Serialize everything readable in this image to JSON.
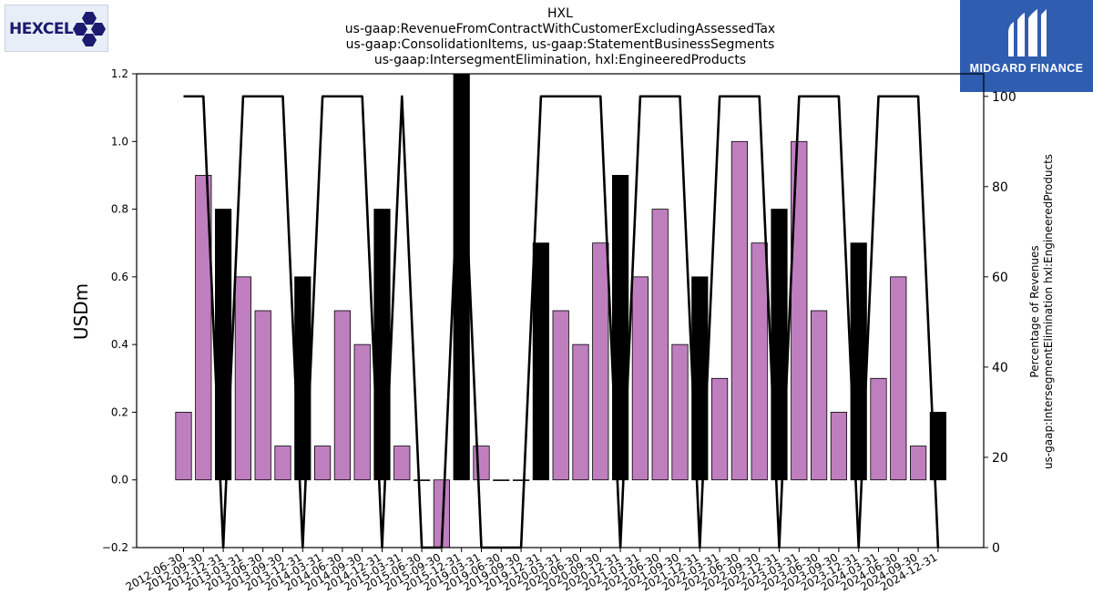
{
  "header": {
    "title_lines": [
      "HXL",
      "us-gaap:RevenueFromContractWithCustomerExcludingAssessedTax",
      "us-gaap:ConsolidationItems, us-gaap:StatementBusinessSegments",
      "us-gaap:IntersegmentElimination, hxl:EngineeredProducts"
    ]
  },
  "logos": {
    "left_text": "HEXCEL",
    "right_text": "MIDGARD FINANCE"
  },
  "colors": {
    "bar_default": "#bf7fbf",
    "bar_highlight": "#000000",
    "line": "#000000",
    "right_logo_bg": "#2f5db0",
    "left_logo_text": "#1a1a6e"
  },
  "chart_data": {
    "type": "bar",
    "categories": [
      "2012-06-30",
      "2012-09-30",
      "2012-12-31",
      "2013-03-31",
      "2013-06-30",
      "2013-09-30",
      "2013-12-31",
      "2014-03-31",
      "2014-06-30",
      "2014-09-30",
      "2014-12-31",
      "2015-03-31",
      "2015-06-30",
      "2015-09-30",
      "2015-12-31",
      "2019-03-31",
      "2019-06-30",
      "2019-09-30",
      "2019-12-31",
      "2020-03-31",
      "2020-06-30",
      "2020-09-30",
      "2020-12-31",
      "2021-03-31",
      "2021-06-30",
      "2021-09-30",
      "2021-12-31",
      "2022-03-31",
      "2022-06-30",
      "2022-09-30",
      "2022-12-31",
      "2023-03-31",
      "2023-06-30",
      "2023-09-30",
      "2023-12-31",
      "2024-03-31",
      "2024-06-30",
      "2024-09-30",
      "2024-12-31"
    ],
    "series": [
      {
        "values": [
          0.2,
          0.9,
          0.8,
          0.6,
          0.5,
          0.1,
          0.6,
          0.1,
          0.5,
          0.4,
          0.8,
          0.1,
          0.0,
          -0.2,
          1.2,
          0.1,
          0.0,
          0.0,
          0.7,
          0.5,
          0.4,
          0.7,
          0.9,
          0.6,
          0.8,
          0.4,
          0.6,
          0.3,
          1.0,
          0.7,
          0.8,
          1.0,
          0.5,
          0.2,
          0.7,
          0.3,
          0.6,
          0.1,
          0.2
        ],
        "highlight": [
          false,
          false,
          true,
          false,
          false,
          false,
          true,
          false,
          false,
          false,
          true,
          false,
          false,
          false,
          true,
          false,
          false,
          false,
          true,
          false,
          false,
          false,
          true,
          false,
          false,
          false,
          true,
          false,
          false,
          false,
          true,
          false,
          false,
          false,
          true,
          false,
          false,
          false,
          true
        ]
      },
      {
        "axis": "right",
        "type": "line",
        "values": [
          100,
          100,
          0,
          100,
          100,
          100,
          0,
          100,
          100,
          100,
          0,
          100,
          0,
          0,
          100,
          0,
          0,
          0,
          100,
          100,
          100,
          100,
          0,
          100,
          100,
          100,
          0,
          100,
          100,
          100,
          0,
          100,
          100,
          100,
          0,
          100,
          100,
          100,
          0
        ]
      }
    ],
    "ylabel": "USDm",
    "ylabel_right": "Percentage of Revenues\nus-gaap:IntersegmentElimination hxl:EngineeredProducts",
    "ylim": [
      -0.2,
      1.2
    ],
    "yticks": [
      "−0.2",
      "0.0",
      "0.2",
      "0.4",
      "0.6",
      "0.8",
      "1.0",
      "1.2"
    ],
    "ylim_right": [
      0,
      105
    ],
    "yticks_right": [
      "0",
      "20",
      "40",
      "60",
      "80",
      "100"
    ]
  }
}
